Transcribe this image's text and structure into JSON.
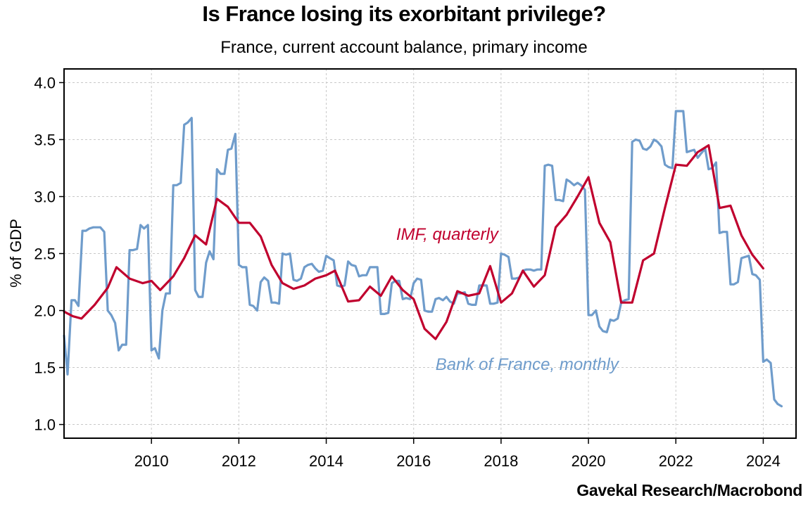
{
  "chart_data": {
    "type": "line",
    "title": "Is France losing its exorbitant privilege?",
    "subtitle": "France, current account balance, primary income",
    "ylabel": "% of GDP",
    "xlabel": "",
    "source": "Gavekal Research/Macrobond",
    "xlim": [
      2008.0,
      2024.75
    ],
    "ylim": [
      0.88,
      4.12
    ],
    "x_ticks": [
      2010,
      2012,
      2014,
      2016,
      2018,
      2020,
      2022,
      2024
    ],
    "x_tick_labels": [
      "2010",
      "2012",
      "2014",
      "2016",
      "2018",
      "2020",
      "2022",
      "2024"
    ],
    "y_ticks": [
      1.0,
      1.5,
      2.0,
      2.5,
      3.0,
      3.5,
      4.0
    ],
    "y_tick_labels": [
      "1.0",
      "1.5",
      "2.0",
      "2.5",
      "3.0",
      "3.5",
      "4.0"
    ],
    "grid": true,
    "series": [
      {
        "name": "IMF, quarterly",
        "label": "IMF, quarterly",
        "color": "#c0002e",
        "label_at": [
          2015.6,
          2.62
        ],
        "points": [
          [
            2008.0,
            1.99
          ],
          [
            2008.2,
            1.95
          ],
          [
            2008.4,
            1.93
          ],
          [
            2008.7,
            2.05
          ],
          [
            2009.0,
            2.2
          ],
          [
            2009.2,
            2.38
          ],
          [
            2009.5,
            2.28
          ],
          [
            2009.8,
            2.24
          ],
          [
            2010.0,
            2.26
          ],
          [
            2010.2,
            2.18
          ],
          [
            2010.5,
            2.3
          ],
          [
            2010.75,
            2.46
          ],
          [
            2011.0,
            2.66
          ],
          [
            2011.25,
            2.58
          ],
          [
            2011.5,
            2.98
          ],
          [
            2011.75,
            2.91
          ],
          [
            2012.0,
            2.77
          ],
          [
            2012.25,
            2.77
          ],
          [
            2012.5,
            2.65
          ],
          [
            2012.75,
            2.4
          ],
          [
            2013.0,
            2.24
          ],
          [
            2013.25,
            2.19
          ],
          [
            2013.5,
            2.22
          ],
          [
            2013.75,
            2.28
          ],
          [
            2014.0,
            2.31
          ],
          [
            2014.2,
            2.35
          ],
          [
            2014.5,
            2.08
          ],
          [
            2014.75,
            2.09
          ],
          [
            2015.0,
            2.21
          ],
          [
            2015.25,
            2.13
          ],
          [
            2015.5,
            2.3
          ],
          [
            2015.75,
            2.18
          ],
          [
            2016.0,
            2.1
          ],
          [
            2016.25,
            1.84
          ],
          [
            2016.5,
            1.75
          ],
          [
            2016.75,
            1.9
          ],
          [
            2017.0,
            2.17
          ],
          [
            2017.25,
            2.13
          ],
          [
            2017.5,
            2.15
          ],
          [
            2017.75,
            2.39
          ],
          [
            2018.0,
            2.07
          ],
          [
            2018.25,
            2.15
          ],
          [
            2018.5,
            2.35
          ],
          [
            2018.75,
            2.21
          ],
          [
            2019.0,
            2.31
          ],
          [
            2019.25,
            2.73
          ],
          [
            2019.5,
            2.84
          ],
          [
            2019.75,
            3.0
          ],
          [
            2020.0,
            3.17
          ],
          [
            2020.25,
            2.77
          ],
          [
            2020.5,
            2.6
          ],
          [
            2020.75,
            2.07
          ],
          [
            2021.0,
            2.07
          ],
          [
            2021.25,
            2.44
          ],
          [
            2021.5,
            2.5
          ],
          [
            2021.75,
            2.9
          ],
          [
            2022.0,
            3.28
          ],
          [
            2022.25,
            3.27
          ],
          [
            2022.5,
            3.39
          ],
          [
            2022.75,
            3.45
          ],
          [
            2023.0,
            2.9
          ],
          [
            2023.25,
            2.92
          ],
          [
            2023.5,
            2.66
          ],
          [
            2023.75,
            2.49
          ],
          [
            2024.0,
            2.37
          ]
        ]
      },
      {
        "name": "Bank of France, monthly",
        "label": "Bank of France, monthly",
        "color": "#6f9ccb",
        "label_at": [
          2016.5,
          1.48
        ],
        "points": [
          [
            2008.0,
            1.78
          ],
          [
            2008.08,
            1.44
          ],
          [
            2008.17,
            2.09
          ],
          [
            2008.25,
            2.09
          ],
          [
            2008.33,
            2.04
          ],
          [
            2008.42,
            2.7
          ],
          [
            2008.5,
            2.7
          ],
          [
            2008.58,
            2.72
          ],
          [
            2008.67,
            2.73
          ],
          [
            2008.75,
            2.73
          ],
          [
            2008.83,
            2.73
          ],
          [
            2008.92,
            2.69
          ],
          [
            2009.0,
            2.0
          ],
          [
            2009.08,
            1.96
          ],
          [
            2009.17,
            1.89
          ],
          [
            2009.25,
            1.65
          ],
          [
            2009.33,
            1.7
          ],
          [
            2009.42,
            1.7
          ],
          [
            2009.5,
            2.53
          ],
          [
            2009.58,
            2.53
          ],
          [
            2009.67,
            2.54
          ],
          [
            2009.75,
            2.75
          ],
          [
            2009.83,
            2.72
          ],
          [
            2009.92,
            2.75
          ],
          [
            2010.0,
            1.65
          ],
          [
            2010.08,
            1.67
          ],
          [
            2010.17,
            1.58
          ],
          [
            2010.25,
            2.0
          ],
          [
            2010.33,
            2.15
          ],
          [
            2010.42,
            2.15
          ],
          [
            2010.5,
            3.1
          ],
          [
            2010.58,
            3.1
          ],
          [
            2010.67,
            3.12
          ],
          [
            2010.75,
            3.63
          ],
          [
            2010.83,
            3.65
          ],
          [
            2010.92,
            3.69
          ],
          [
            2011.0,
            2.18
          ],
          [
            2011.08,
            2.12
          ],
          [
            2011.17,
            2.12
          ],
          [
            2011.25,
            2.42
          ],
          [
            2011.33,
            2.52
          ],
          [
            2011.42,
            2.45
          ],
          [
            2011.5,
            3.24
          ],
          [
            2011.58,
            3.2
          ],
          [
            2011.67,
            3.2
          ],
          [
            2011.75,
            3.41
          ],
          [
            2011.83,
            3.42
          ],
          [
            2011.92,
            3.55
          ],
          [
            2012.0,
            2.4
          ],
          [
            2012.08,
            2.38
          ],
          [
            2012.17,
            2.38
          ],
          [
            2012.25,
            2.05
          ],
          [
            2012.33,
            2.04
          ],
          [
            2012.42,
            2.0
          ],
          [
            2012.5,
            2.25
          ],
          [
            2012.58,
            2.29
          ],
          [
            2012.67,
            2.26
          ],
          [
            2012.75,
            2.07
          ],
          [
            2012.83,
            2.07
          ],
          [
            2012.92,
            2.06
          ],
          [
            2013.0,
            2.5
          ],
          [
            2013.08,
            2.49
          ],
          [
            2013.17,
            2.5
          ],
          [
            2013.25,
            2.27
          ],
          [
            2013.33,
            2.26
          ],
          [
            2013.42,
            2.28
          ],
          [
            2013.5,
            2.38
          ],
          [
            2013.58,
            2.4
          ],
          [
            2013.67,
            2.41
          ],
          [
            2013.75,
            2.37
          ],
          [
            2013.83,
            2.34
          ],
          [
            2013.92,
            2.35
          ],
          [
            2014.0,
            2.48
          ],
          [
            2014.08,
            2.46
          ],
          [
            2014.17,
            2.44
          ],
          [
            2014.25,
            2.22
          ],
          [
            2014.33,
            2.21
          ],
          [
            2014.42,
            2.22
          ],
          [
            2014.5,
            2.43
          ],
          [
            2014.58,
            2.4
          ],
          [
            2014.67,
            2.39
          ],
          [
            2014.75,
            2.3
          ],
          [
            2014.83,
            2.31
          ],
          [
            2014.92,
            2.31
          ],
          [
            2015.0,
            2.38
          ],
          [
            2015.08,
            2.38
          ],
          [
            2015.17,
            2.38
          ],
          [
            2015.25,
            1.97
          ],
          [
            2015.33,
            1.97
          ],
          [
            2015.42,
            1.98
          ],
          [
            2015.5,
            2.24
          ],
          [
            2015.58,
            2.26
          ],
          [
            2015.67,
            2.26
          ],
          [
            2015.75,
            2.1
          ],
          [
            2015.83,
            2.11
          ],
          [
            2015.92,
            2.1
          ],
          [
            2016.0,
            2.24
          ],
          [
            2016.08,
            2.28
          ],
          [
            2016.17,
            2.27
          ],
          [
            2016.25,
            2.0
          ],
          [
            2016.33,
            1.99
          ],
          [
            2016.42,
            1.99
          ],
          [
            2016.5,
            2.1
          ],
          [
            2016.58,
            2.11
          ],
          [
            2016.67,
            2.09
          ],
          [
            2016.75,
            2.12
          ],
          [
            2016.83,
            2.08
          ],
          [
            2016.92,
            2.06
          ],
          [
            2017.0,
            2.15
          ],
          [
            2017.08,
            2.15
          ],
          [
            2017.17,
            2.16
          ],
          [
            2017.25,
            2.06
          ],
          [
            2017.33,
            2.05
          ],
          [
            2017.42,
            2.05
          ],
          [
            2017.5,
            2.22
          ],
          [
            2017.58,
            2.22
          ],
          [
            2017.67,
            2.22
          ],
          [
            2017.75,
            2.06
          ],
          [
            2017.83,
            2.06
          ],
          [
            2017.92,
            2.07
          ],
          [
            2018.0,
            2.5
          ],
          [
            2018.08,
            2.49
          ],
          [
            2018.17,
            2.47
          ],
          [
            2018.25,
            2.28
          ],
          [
            2018.33,
            2.28
          ],
          [
            2018.42,
            2.29
          ],
          [
            2018.5,
            2.35
          ],
          [
            2018.58,
            2.36
          ],
          [
            2018.67,
            2.36
          ],
          [
            2018.75,
            2.35
          ],
          [
            2018.83,
            2.36
          ],
          [
            2018.92,
            2.36
          ],
          [
            2019.0,
            3.27
          ],
          [
            2019.08,
            3.28
          ],
          [
            2019.17,
            3.27
          ],
          [
            2019.25,
            2.97
          ],
          [
            2019.33,
            2.97
          ],
          [
            2019.42,
            2.96
          ],
          [
            2019.5,
            3.15
          ],
          [
            2019.58,
            3.13
          ],
          [
            2019.67,
            3.1
          ],
          [
            2019.75,
            3.12
          ],
          [
            2019.83,
            3.1
          ],
          [
            2019.92,
            3.06
          ],
          [
            2020.0,
            1.96
          ],
          [
            2020.08,
            1.96
          ],
          [
            2020.17,
            2.0
          ],
          [
            2020.25,
            1.86
          ],
          [
            2020.33,
            1.82
          ],
          [
            2020.42,
            1.81
          ],
          [
            2020.5,
            1.92
          ],
          [
            2020.58,
            1.91
          ],
          [
            2020.67,
            1.93
          ],
          [
            2020.75,
            2.07
          ],
          [
            2020.83,
            2.09
          ],
          [
            2020.92,
            2.1
          ],
          [
            2021.0,
            3.48
          ],
          [
            2021.08,
            3.5
          ],
          [
            2021.17,
            3.49
          ],
          [
            2021.25,
            3.42
          ],
          [
            2021.33,
            3.41
          ],
          [
            2021.42,
            3.44
          ],
          [
            2021.5,
            3.5
          ],
          [
            2021.58,
            3.48
          ],
          [
            2021.67,
            3.44
          ],
          [
            2021.75,
            3.28
          ],
          [
            2021.83,
            3.26
          ],
          [
            2021.92,
            3.25
          ],
          [
            2022.0,
            3.75
          ],
          [
            2022.08,
            3.75
          ],
          [
            2022.17,
            3.75
          ],
          [
            2022.25,
            3.39
          ],
          [
            2022.33,
            3.4
          ],
          [
            2022.42,
            3.41
          ],
          [
            2022.5,
            3.34
          ],
          [
            2022.58,
            3.38
          ],
          [
            2022.67,
            3.42
          ],
          [
            2022.75,
            3.24
          ],
          [
            2022.83,
            3.25
          ],
          [
            2022.92,
            3.3
          ],
          [
            2023.0,
            2.68
          ],
          [
            2023.08,
            2.69
          ],
          [
            2023.17,
            2.69
          ],
          [
            2023.25,
            2.23
          ],
          [
            2023.33,
            2.23
          ],
          [
            2023.42,
            2.25
          ],
          [
            2023.5,
            2.46
          ],
          [
            2023.58,
            2.47
          ],
          [
            2023.67,
            2.48
          ],
          [
            2023.75,
            2.32
          ],
          [
            2023.83,
            2.31
          ],
          [
            2023.92,
            2.27
          ],
          [
            2024.0,
            1.55
          ],
          [
            2024.08,
            1.57
          ],
          [
            2024.17,
            1.54
          ],
          [
            2024.25,
            1.22
          ],
          [
            2024.33,
            1.18
          ],
          [
            2024.42,
            1.16
          ]
        ]
      }
    ]
  }
}
